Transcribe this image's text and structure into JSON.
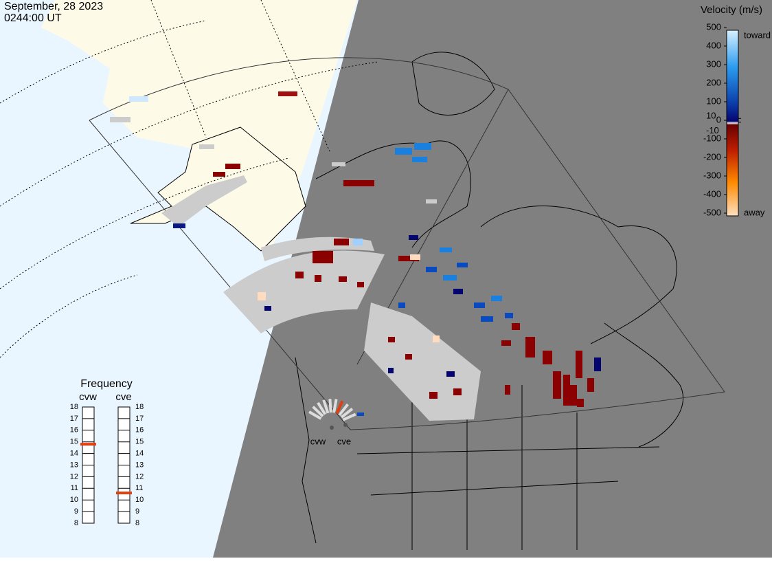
{
  "header": {
    "date": "September, 28 2023",
    "time": "0244:00 UT"
  },
  "velocity_legend": {
    "title": "Velocity (m/s)",
    "ticks": [
      500,
      400,
      300,
      200,
      100,
      0,
      -100,
      -200,
      -300,
      -400,
      -500
    ],
    "inner_ticks": [
      10,
      -10
    ],
    "toward": "toward",
    "away": "away"
  },
  "frequency": {
    "title": "Frequency",
    "ticks": [
      8,
      9,
      10,
      11,
      12,
      13,
      14,
      15,
      16,
      17,
      18
    ],
    "radars": [
      {
        "name": "cvw",
        "value": 14.8
      },
      {
        "name": "cve",
        "value": 10.6
      }
    ]
  }
}
